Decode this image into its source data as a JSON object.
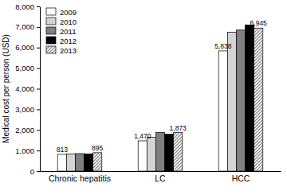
{
  "chart_data": {
    "type": "bar",
    "y_label": "Medical cost per person (USD)",
    "categories": [
      "Chronic hepatitis",
      "LC",
      "HCC"
    ],
    "series": [
      {
        "name": "2009",
        "color": "#ffffff",
        "values": [
          813,
          1470,
          5838
        ],
        "value_labels": [
          "813",
          "1,470",
          "5,838"
        ]
      },
      {
        "name": "2010",
        "color": "#d4d4d4",
        "values": [
          840,
          1650,
          6750
        ]
      },
      {
        "name": "2011",
        "color": "#7f7f7f",
        "values": [
          850,
          1880,
          6850
        ]
      },
      {
        "name": "2012",
        "color": "#000000",
        "values": [
          840,
          1790,
          7100
        ]
      },
      {
        "name": "2013",
        "color": "#8c8c8c",
        "line_style": "hatched",
        "values": [
          895,
          1873,
          6945
        ],
        "value_labels": [
          "895",
          "1,873",
          "6,945"
        ]
      }
    ],
    "ylim": [
      0,
      8000
    ],
    "yticks": [
      0,
      {
        "value": 1000,
        "label": "1,000"
      },
      {
        "value": 2000,
        "label": "2,000"
      },
      {
        "value": 3000,
        "label": "3,000"
      },
      {
        "value": 4000,
        "label": "4,000"
      },
      {
        "value": 5000,
        "label": "5,000"
      },
      {
        "value": 6000,
        "label": "6,000"
      },
      {
        "value": 7000,
        "label": "7,000"
      },
      {
        "value": 8000,
        "label": "8,000"
      }
    ],
    "legend": "upper left",
    "data_labels": true
  }
}
